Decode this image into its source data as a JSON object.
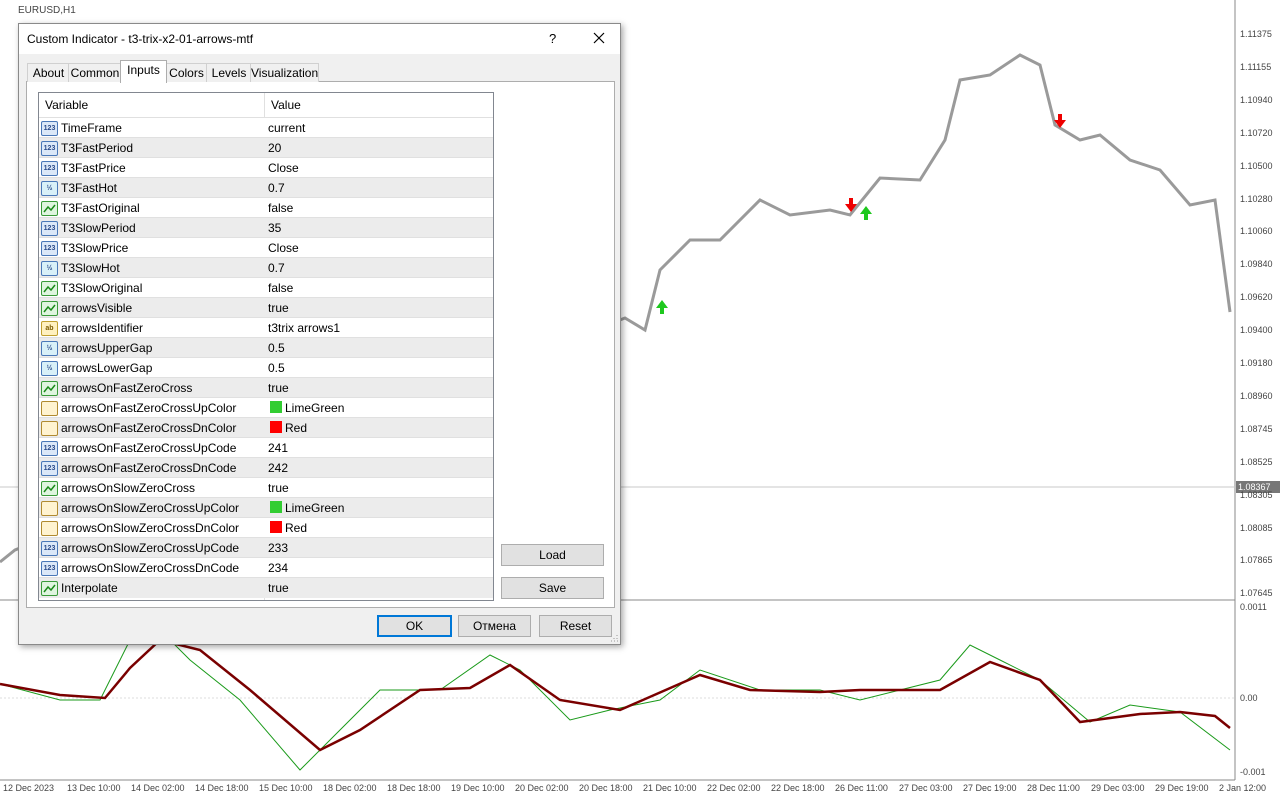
{
  "chart": {
    "symbol": "EURUSD,H1",
    "price_labels": [
      "1.11375",
      "1.11155",
      "1.10940",
      "1.10720",
      "1.10500",
      "1.10280",
      "1.10060",
      "1.09840",
      "1.09620",
      "1.09400",
      "1.09180",
      "1.08960",
      "1.08745",
      "1.08525",
      "1.08305",
      "1.08085",
      "1.07865",
      "1.07645"
    ],
    "current_price": "1.08367",
    "indicator_labels": [
      "0.0011",
      "0.00",
      "-0.001"
    ],
    "time_labels": [
      "12 Dec 2023",
      "13 Dec 10:00",
      "14 Dec 02:00",
      "14 Dec 18:00",
      "15 Dec 10:00",
      "18 Dec 02:00",
      "18 Dec 18:00",
      "19 Dec 10:00",
      "20 Dec 02:00",
      "20 Dec 18:00",
      "21 Dec 10:00",
      "22 Dec 02:00",
      "22 Dec 18:00",
      "26 Dec 11:00",
      "27 Dec 03:00",
      "27 Dec 19:00",
      "28 Dec 11:00",
      "29 Dec 03:00",
      "29 Dec 19:00",
      "2 Jan 12:00"
    ]
  },
  "dialog": {
    "title": "Custom Indicator - t3-trix-x2-01-arrows-mtf",
    "help": "?",
    "tabs": [
      "About",
      "Common",
      "Inputs",
      "Colors",
      "Levels",
      "Visualization"
    ],
    "active_tab": 2,
    "icons": {
      "int": "123",
      "double": "½",
      "string": "ab"
    },
    "table": {
      "headers": [
        "Variable",
        "Value"
      ],
      "rows": [
        {
          "type": "int",
          "variable": "TimeFrame",
          "value": "current"
        },
        {
          "type": "int",
          "variable": "T3FastPeriod",
          "value": 20
        },
        {
          "type": "int",
          "variable": "T3FastPrice",
          "value": "Close"
        },
        {
          "type": "double",
          "variable": "T3FastHot",
          "value": 0.7
        },
        {
          "type": "bool",
          "variable": "T3FastOriginal",
          "value": "false"
        },
        {
          "type": "int",
          "variable": "T3SlowPeriod",
          "value": 35
        },
        {
          "type": "int",
          "variable": "T3SlowPrice",
          "value": "Close"
        },
        {
          "type": "double",
          "variable": "T3SlowHot",
          "value": 0.7
        },
        {
          "type": "bool",
          "variable": "T3SlowOriginal",
          "value": "false"
        },
        {
          "type": "bool",
          "variable": "arrowsVisible",
          "value": "true"
        },
        {
          "type": "string",
          "variable": "arrowsIdentifier",
          "value": "t3trix arrows1"
        },
        {
          "type": "double",
          "variable": "arrowsUpperGap",
          "value": 0.5
        },
        {
          "type": "double",
          "variable": "arrowsLowerGap",
          "value": 0.5
        },
        {
          "type": "bool",
          "variable": "arrowsOnFastZeroCross",
          "value": "true"
        },
        {
          "type": "color",
          "variable": "arrowsOnFastZeroCrossUpColor",
          "value": "LimeGreen",
          "swatch": "#32cd32"
        },
        {
          "type": "color",
          "variable": "arrowsOnFastZeroCrossDnColor",
          "value": "Red",
          "swatch": "#ff0000"
        },
        {
          "type": "int",
          "variable": "arrowsOnFastZeroCrossUpCode",
          "value": 241
        },
        {
          "type": "int",
          "variable": "arrowsOnFastZeroCrossDnCode",
          "value": 242
        },
        {
          "type": "bool",
          "variable": "arrowsOnSlowZeroCross",
          "value": "true"
        },
        {
          "type": "color",
          "variable": "arrowsOnSlowZeroCrossUpColor",
          "value": "LimeGreen",
          "swatch": "#32cd32"
        },
        {
          "type": "color",
          "variable": "arrowsOnSlowZeroCrossDnColor",
          "value": "Red",
          "swatch": "#ff0000"
        },
        {
          "type": "int",
          "variable": "arrowsOnSlowZeroCrossUpCode",
          "value": 233
        },
        {
          "type": "int",
          "variable": "arrowsOnSlowZeroCrossDnCode",
          "value": 234
        },
        {
          "type": "bool",
          "variable": "Interpolate",
          "value": "true"
        }
      ]
    },
    "side_buttons": [
      "Load",
      "Save"
    ],
    "buttons": [
      "OK",
      "Отмена",
      "Reset"
    ]
  }
}
